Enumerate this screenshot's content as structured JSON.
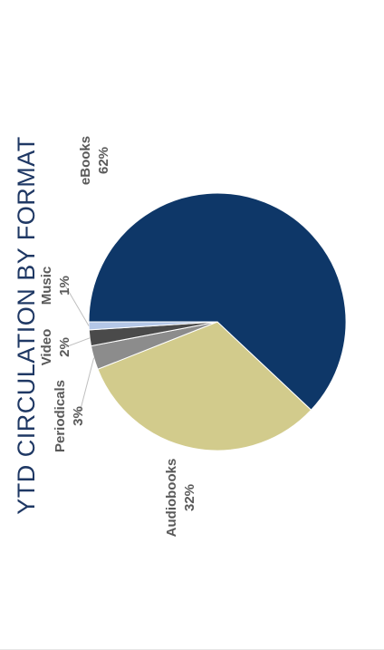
{
  "chart_data": {
    "type": "pie",
    "title": "YTD CIRCULATION  BY FORMAT",
    "slices": [
      {
        "name": "eBooks",
        "value": 62,
        "label": "62%",
        "color": "#0e3768"
      },
      {
        "name": "Audiobooks",
        "value": 32,
        "label": "32%",
        "color": "#d2cb8c"
      },
      {
        "name": "Periodicals",
        "value": 3,
        "label": "3%",
        "color": "#8c8c8c"
      },
      {
        "name": "Video",
        "value": 2,
        "label": "2%",
        "color": "#4a4a4a"
      },
      {
        "name": "Music",
        "value": 1,
        "label": "1%",
        "color": "#b4c7e7"
      }
    ],
    "legend": "none",
    "orientation": "rotated 90 degrees counter-clockwise"
  }
}
